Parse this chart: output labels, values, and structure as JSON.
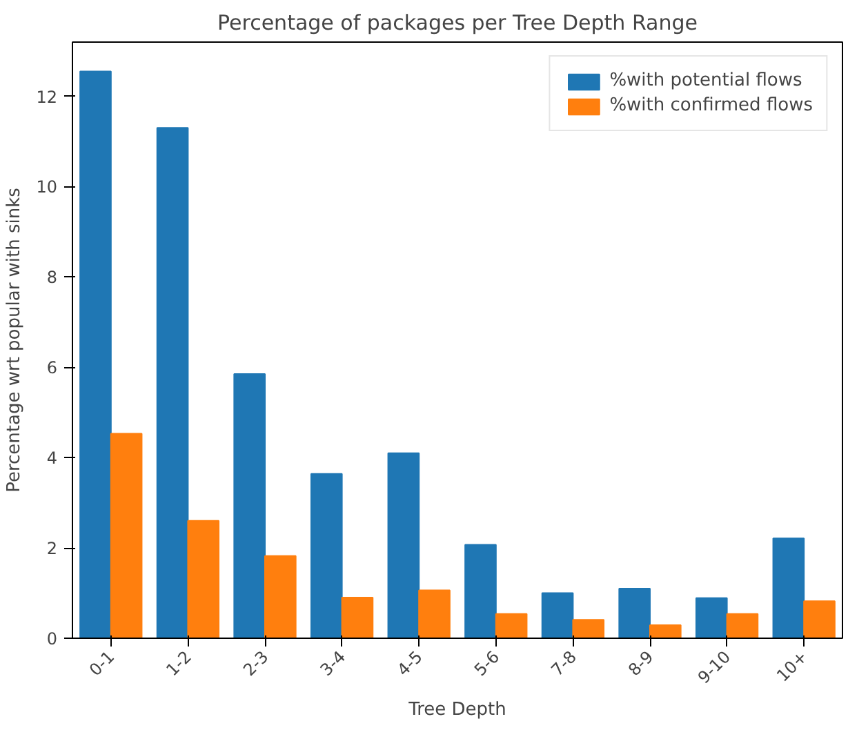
{
  "chart_data": {
    "type": "bar",
    "title": "Percentage of packages per Tree Depth Range",
    "xlabel": "Tree Depth",
    "ylabel": "Percentage wrt popular with sinks",
    "categories": [
      "0-1",
      "1-2",
      "2-3",
      "3-4",
      "4-5",
      "5-6",
      "7-8",
      "8-9",
      "9-10",
      "10+"
    ],
    "series": [
      {
        "name": "%with potential flows",
        "color": "#1f77b4",
        "values": [
          12.55,
          11.3,
          5.85,
          3.64,
          4.1,
          2.07,
          1.0,
          1.1,
          0.89,
          2.21
        ]
      },
      {
        "name": "%with confirmed flows",
        "color": "#ff7f0e",
        "values": [
          4.53,
          2.6,
          1.82,
          0.9,
          1.06,
          0.54,
          0.41,
          0.29,
          0.54,
          0.82
        ]
      }
    ],
    "ylim": [
      0,
      13.2
    ],
    "yticks": [
      0,
      2,
      4,
      6,
      8,
      10,
      12
    ],
    "grid": false,
    "legend": "top right"
  }
}
